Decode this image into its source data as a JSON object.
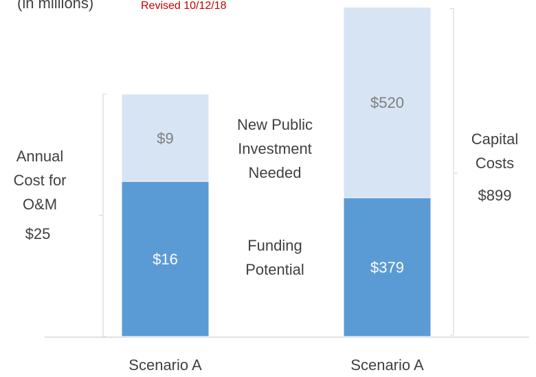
{
  "title": "(in millions)",
  "subtitle": "Revised 10/12/18",
  "chart_data": [
    {
      "type": "bar",
      "stacked": true,
      "categories": [
        "Scenario A"
      ],
      "ylim": [
        0,
        34
      ],
      "series": [
        {
          "name": "Funding Potential",
          "color": "#5b9bd5",
          "values": [
            16
          ],
          "value_labels": [
            "$16"
          ]
        },
        {
          "name": "New Public Investment Needed",
          "color": "#d6e4f4",
          "values": [
            9
          ],
          "value_labels": [
            "$9"
          ]
        }
      ],
      "bracket_label": "Annual Cost for O&M",
      "total": 25,
      "total_label": "$25"
    },
    {
      "type": "bar",
      "stacked": true,
      "categories": [
        "Scenario A"
      ],
      "ylim": [
        0,
        900
      ],
      "series": [
        {
          "color": "#5b9bd5",
          "values": [
            379
          ],
          "value_labels": [
            "$379"
          ]
        },
        {
          "color": "#d6e4f4",
          "values": [
            520
          ],
          "value_labels": [
            "$520"
          ]
        }
      ],
      "bracket_label": "Capital Costs",
      "total": 899,
      "total_label": "$899"
    }
  ]
}
